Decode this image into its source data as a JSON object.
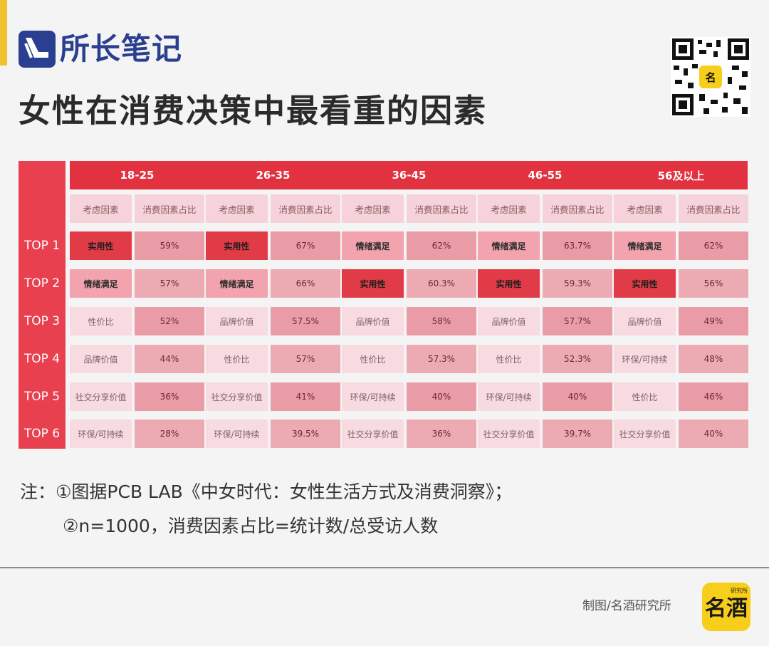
{
  "header": {
    "logo_text": "所长笔记",
    "title": "女性在消费决策中最看重的因素"
  },
  "chart_data": {
    "type": "table",
    "age_groups": [
      "18-25",
      "26-35",
      "36-45",
      "46-55",
      "56及以上"
    ],
    "sub_headers": [
      "考虑因素",
      "消费因素占比"
    ],
    "row_labels": [
      "TOP 1",
      "TOP 2",
      "TOP 3",
      "TOP 4",
      "TOP 5",
      "TOP 6"
    ],
    "rows": [
      [
        [
          "实用性",
          "59%"
        ],
        [
          "实用性",
          "67%"
        ],
        [
          "情绪满足",
          "62%"
        ],
        [
          "情绪满足",
          "63.7%"
        ],
        [
          "情绪满足",
          "62%"
        ]
      ],
      [
        [
          "情绪满足",
          "57%"
        ],
        [
          "情绪满足",
          "66%"
        ],
        [
          "实用性",
          "60.3%"
        ],
        [
          "实用性",
          "59.3%"
        ],
        [
          "实用性",
          "56%"
        ]
      ],
      [
        [
          "性价比",
          "52%"
        ],
        [
          "品牌价值",
          "57.5%"
        ],
        [
          "品牌价值",
          "58%"
        ],
        [
          "品牌价值",
          "57.7%"
        ],
        [
          "品牌价值",
          "49%"
        ]
      ],
      [
        [
          "品牌价值",
          "44%"
        ],
        [
          "性价比",
          "57%"
        ],
        [
          "性价比",
          "57.3%"
        ],
        [
          "性价比",
          "52.3%"
        ],
        [
          "环保/可持续",
          "48%"
        ]
      ],
      [
        [
          "社交分享价值",
          "36%"
        ],
        [
          "社交分享价值",
          "41%"
        ],
        [
          "环保/可持续",
          "40%"
        ],
        [
          "环保/可持续",
          "40%"
        ],
        [
          "性价比",
          "46%"
        ]
      ],
      [
        [
          "环保/可持续",
          "28%"
        ],
        [
          "环保/可持续",
          "39.5%"
        ],
        [
          "社交分享价值",
          "36%"
        ],
        [
          "社交分享价值",
          "39.7%"
        ],
        [
          "社交分享价值",
          "40%"
        ]
      ]
    ],
    "colors": {
      "header": "#e3323f",
      "rank_column": "#e8404e",
      "factor_top1": "#e23b48",
      "factor_top2": "#f2a3ae",
      "factor_other": "#f7dbe0",
      "value_cell": "#e99ca6",
      "sub_header": "#f6d3da"
    }
  },
  "notes": {
    "line1": "注：①图据PCB LAB《中女时代：女性生活方式及消费洞察》；",
    "line2": "②n=1000，消费因素占比=统计数/总受访人数"
  },
  "footer": {
    "credit": "制图/名酒研究所",
    "brand_glyph": "名酒",
    "brand_small": "研究所"
  }
}
